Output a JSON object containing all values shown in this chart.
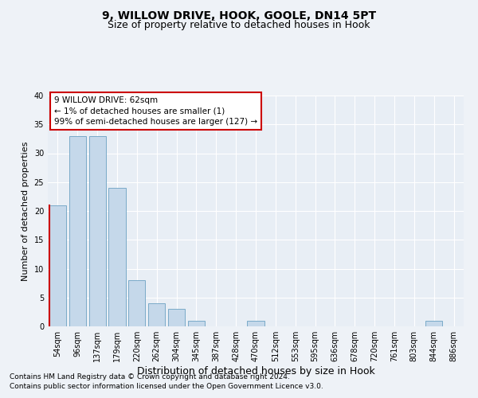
{
  "title": "9, WILLOW DRIVE, HOOK, GOOLE, DN14 5PT",
  "subtitle": "Size of property relative to detached houses in Hook",
  "xlabel": "Distribution of detached houses by size in Hook",
  "ylabel": "Number of detached properties",
  "bar_color": "#c5d8ea",
  "bar_edge_color": "#7aaac8",
  "categories": [
    "54sqm",
    "96sqm",
    "137sqm",
    "179sqm",
    "220sqm",
    "262sqm",
    "304sqm",
    "345sqm",
    "387sqm",
    "428sqm",
    "470sqm",
    "512sqm",
    "553sqm",
    "595sqm",
    "636sqm",
    "678sqm",
    "720sqm",
    "761sqm",
    "803sqm",
    "844sqm",
    "886sqm"
  ],
  "values": [
    21,
    33,
    33,
    24,
    8,
    4,
    3,
    1,
    0,
    0,
    1,
    0,
    0,
    0,
    0,
    0,
    0,
    0,
    0,
    1,
    0
  ],
  "ylim": [
    0,
    40
  ],
  "yticks": [
    0,
    5,
    10,
    15,
    20,
    25,
    30,
    35,
    40
  ],
  "annotation_title": "9 WILLOW DRIVE: 62sqm",
  "annotation_line1": "← 1% of detached houses are smaller (1)",
  "annotation_line2": "99% of semi-detached houses are larger (127) →",
  "footnote1": "Contains HM Land Registry data © Crown copyright and database right 2024.",
  "footnote2": "Contains public sector information licensed under the Open Government Licence v3.0.",
  "background_color": "#eef2f7",
  "plot_bg_color": "#e8eef5",
  "grid_color": "#ffffff",
  "title_fontsize": 10,
  "subtitle_fontsize": 9,
  "xlabel_fontsize": 9,
  "ylabel_fontsize": 8,
  "tick_fontsize": 7,
  "annotation_fontsize": 7.5,
  "footnote_fontsize": 6.5
}
